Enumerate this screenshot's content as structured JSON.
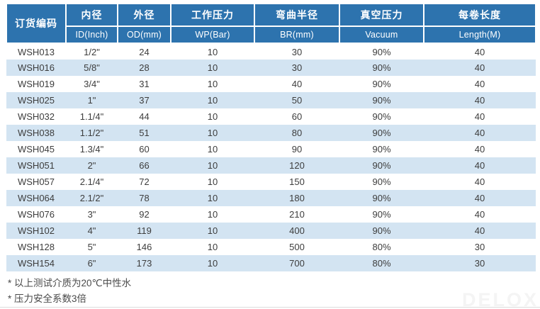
{
  "table": {
    "column_keys": [
      "code",
      "id_inch",
      "od_mm",
      "wp_bar",
      "br_mm",
      "vacuum",
      "length_m"
    ],
    "columns": [
      {
        "cn": "订货编码",
        "en": ""
      },
      {
        "cn": "内径",
        "en": "ID(Inch)"
      },
      {
        "cn": "外径",
        "en": "OD(mm)"
      },
      {
        "cn": "工作压力",
        "en": "WP(Bar)"
      },
      {
        "cn": "弯曲半径",
        "en": "BR(mm)"
      },
      {
        "cn": "真空压力",
        "en": "Vacuum"
      },
      {
        "cn": "每卷长度",
        "en": "Length(M)"
      }
    ],
    "rows": [
      [
        "WSH013",
        "1/2\"",
        "24",
        "10",
        "30",
        "90%",
        "40"
      ],
      [
        "WSH016",
        "5/8\"",
        "28",
        "10",
        "30",
        "90%",
        "40"
      ],
      [
        "WSH019",
        "3/4\"",
        "31",
        "10",
        "40",
        "90%",
        "40"
      ],
      [
        "WSH025",
        "1\"",
        "37",
        "10",
        "50",
        "90%",
        "40"
      ],
      [
        "WSH032",
        "1.1/4\"",
        "44",
        "10",
        "60",
        "90%",
        "40"
      ],
      [
        "WSH038",
        "1.1/2\"",
        "51",
        "10",
        "80",
        "90%",
        "40"
      ],
      [
        "WSH045",
        "1.3/4\"",
        "60",
        "10",
        "90",
        "90%",
        "40"
      ],
      [
        "WSH051",
        "2\"",
        "66",
        "10",
        "120",
        "90%",
        "40"
      ],
      [
        "WSH057",
        "2.1/4\"",
        "72",
        "10",
        "150",
        "90%",
        "40"
      ],
      [
        "WSH064",
        "2.1/2\"",
        "78",
        "10",
        "180",
        "90%",
        "40"
      ],
      [
        "WSH076",
        "3\"",
        "92",
        "10",
        "210",
        "90%",
        "40"
      ],
      [
        "WSH102",
        "4\"",
        "119",
        "10",
        "400",
        "90%",
        "40"
      ],
      [
        "WSH128",
        "5\"",
        "146",
        "10",
        "500",
        "80%",
        "30"
      ],
      [
        "WSH154",
        "6\"",
        "173",
        "10",
        "700",
        "80%",
        "30"
      ]
    ]
  },
  "footnotes": [
    "* 以上测试介质为20℃中性水",
    "* 压力安全系数3倍"
  ],
  "watermark": "DELOX",
  "colors": {
    "header_bg": "#2d73ae",
    "stripe_bg": "#d3e4f2",
    "header_text": "#ffffff",
    "body_text": "#3d3d3d"
  }
}
